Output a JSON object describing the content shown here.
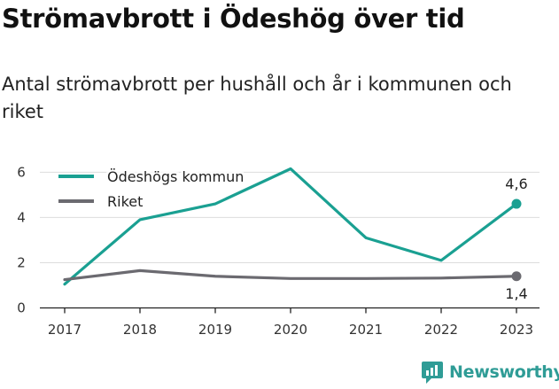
{
  "header": {
    "title": "Strömavbrott i Ödeshög över tid",
    "subtitle": "Antal strömavbrott per hushåll och år i kommunen och riket"
  },
  "brand": {
    "name": "Newsworthy",
    "icon": "newsworthy-logo-icon"
  },
  "colors": {
    "kommun": "#1aa092",
    "kommun_faded": "#cfeae6",
    "riket": "#6b6a70",
    "grid": "#dddddd",
    "axis": "#222222"
  },
  "chart_data": {
    "type": "line",
    "x": [
      "2017",
      "2018",
      "2019",
      "2020",
      "2021",
      "2022",
      "2023"
    ],
    "ylim": [
      0,
      6.6
    ],
    "yticks": [
      "0",
      "2",
      "4",
      "6"
    ],
    "grid": true,
    "legend_position": "top-left",
    "series": [
      {
        "name": "Ödeshögs kommun",
        "values": [
          1.05,
          3.9,
          4.6,
          6.15,
          3.1,
          2.1,
          4.6
        ],
        "end_label": "4,6"
      },
      {
        "name": "Riket",
        "values": [
          1.25,
          1.65,
          1.4,
          1.3,
          1.3,
          1.32,
          1.4
        ],
        "end_label": "1,4"
      }
    ]
  }
}
